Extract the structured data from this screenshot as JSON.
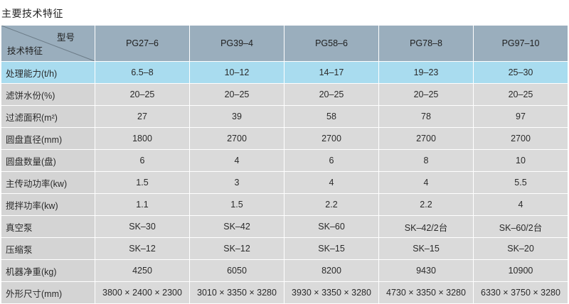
{
  "title": "主要技术特征",
  "table": {
    "corner": {
      "top_label": "型号",
      "bottom_label": "技术特征"
    },
    "models": [
      "PG27–6",
      "PG39–4",
      "PG58–6",
      "PG78–8",
      "PG97–10"
    ],
    "rows": [
      {
        "label": "处理能力(t/h)",
        "values": [
          "6.5–8",
          "10–12",
          "14–17",
          "19–23",
          "25–30"
        ],
        "highlight": true
      },
      {
        "label": "滤饼水份(%)",
        "values": [
          "20–25",
          "20–25",
          "20–25",
          "20–25",
          "20–25"
        ]
      },
      {
        "label": "过滤面积(m²)",
        "values": [
          "27",
          "39",
          "58",
          "78",
          "97"
        ]
      },
      {
        "label": "圆盘直径(mm)",
        "values": [
          "1800",
          "2700",
          "2700",
          "2700",
          "2700"
        ]
      },
      {
        "label": "圆盘数量(盘)",
        "values": [
          "6",
          "4",
          "6",
          "8",
          "10"
        ]
      },
      {
        "label": "主传动功率(kw)",
        "values": [
          "1.5",
          "3",
          "4",
          "4",
          "5.5"
        ]
      },
      {
        "label": "搅拌功率(kw)",
        "values": [
          "1.1",
          "1.5",
          "2.2",
          "2.2",
          "4"
        ]
      },
      {
        "label": "真空泵",
        "values": [
          "SK–30",
          "SK–42",
          "SK–60",
          "SK–42/2台",
          "SK–60/2台"
        ]
      },
      {
        "label": "压缩泵",
        "values": [
          "SK–12",
          "SK–12",
          "SK–15",
          "SK–15",
          "SK–20"
        ]
      },
      {
        "label": "机器净重(kg)",
        "values": [
          "4250",
          "6050",
          "8200",
          "9430",
          "10900"
        ]
      },
      {
        "label": "外形尺寸(mm)",
        "values": [
          "3800 × 2400 × 2300",
          "3010 × 3350 × 3280",
          "3930 × 3350 × 3280",
          "4730 × 3350 × 3280",
          "6330 × 3750 × 3280"
        ]
      }
    ]
  }
}
